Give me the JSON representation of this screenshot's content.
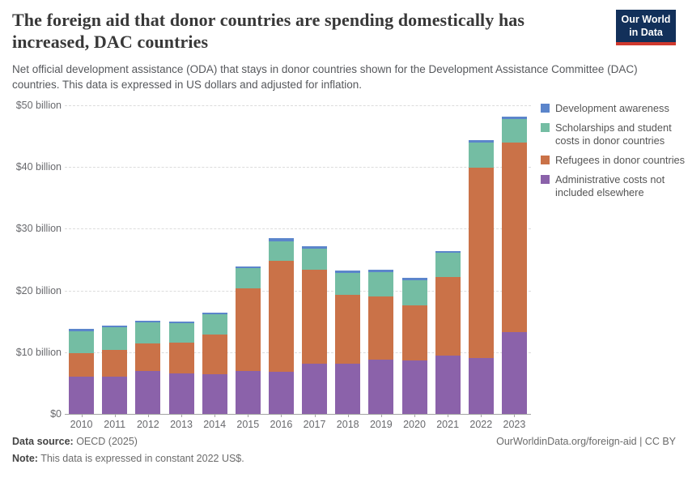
{
  "header": {
    "title": "The foreign aid that donor countries are spending domestically has increased, DAC countries",
    "subtitle": "Net official development assistance (ODA) that stays in donor countries shown for the Development Assistance Committee (DAC) countries. This data is expressed in US dollars and adjusted for inflation.",
    "logo": {
      "line1": "Our World",
      "line2": "in Data",
      "bg_color": "#12305a",
      "accent_color": "#d0392e"
    }
  },
  "chart_data": {
    "type": "bar",
    "stacked": true,
    "title": "The foreign aid that donor countries are spending domestically has increased, DAC countries",
    "unit": "US$ billion (constant 2022 US$)",
    "grid": "horizontal dashed",
    "legend_position": "right",
    "ylim": [
      0,
      50
    ],
    "yticks": [
      {
        "value": 0,
        "label": "$0"
      },
      {
        "value": 10,
        "label": "$10 billion"
      },
      {
        "value": 20,
        "label": "$20 billion"
      },
      {
        "value": 30,
        "label": "$30 billion"
      },
      {
        "value": 40,
        "label": "$40 billion"
      },
      {
        "value": 50,
        "label": "$50 billion"
      }
    ],
    "categories": [
      "2010",
      "2011",
      "2012",
      "2013",
      "2014",
      "2015",
      "2016",
      "2017",
      "2018",
      "2019",
      "2020",
      "2021",
      "2022",
      "2023"
    ],
    "series": [
      {
        "name": "Administrative costs not included elsewhere",
        "color": "#8b62aa",
        "values": [
          6.0,
          6.1,
          6.9,
          6.6,
          6.4,
          6.9,
          6.8,
          8.1,
          8.2,
          8.8,
          8.7,
          9.4,
          9.0,
          13.3
        ]
      },
      {
        "name": "Refugees in donor countries",
        "color": "#ca7248",
        "values": [
          3.8,
          4.3,
          4.5,
          4.9,
          6.4,
          13.4,
          18.0,
          15.3,
          11.1,
          10.2,
          8.9,
          12.8,
          30.9,
          30.6
        ]
      },
      {
        "name": "Scholarships and student costs in donor countries",
        "color": "#74bda3",
        "values": [
          3.6,
          3.6,
          3.4,
          3.2,
          3.3,
          3.3,
          3.2,
          3.4,
          3.6,
          4.0,
          4.1,
          3.9,
          4.1,
          3.9
        ]
      },
      {
        "name": "Development awareness",
        "color": "#5b85cb",
        "values": [
          0.4,
          0.3,
          0.3,
          0.3,
          0.3,
          0.3,
          0.5,
          0.4,
          0.3,
          0.3,
          0.3,
          0.3,
          0.4,
          0.4
        ]
      }
    ]
  },
  "legend": {
    "items": [
      {
        "label": "Development awareness",
        "color": "#5b85cb"
      },
      {
        "label": "Scholarships and student costs in donor countries",
        "color": "#74bda3"
      },
      {
        "label": "Refugees in donor countries",
        "color": "#ca7248"
      },
      {
        "label": "Administrative costs not included elsewhere",
        "color": "#8b62aa"
      }
    ]
  },
  "footer": {
    "source_label": "Data source:",
    "source_value": " OECD (2025)",
    "note_label": "Note:",
    "note_value": " This data is expressed in constant 2022 US$.",
    "link": "OurWorldinData.org/foreign-aid",
    "license_separator": " | ",
    "license": "CC BY"
  }
}
